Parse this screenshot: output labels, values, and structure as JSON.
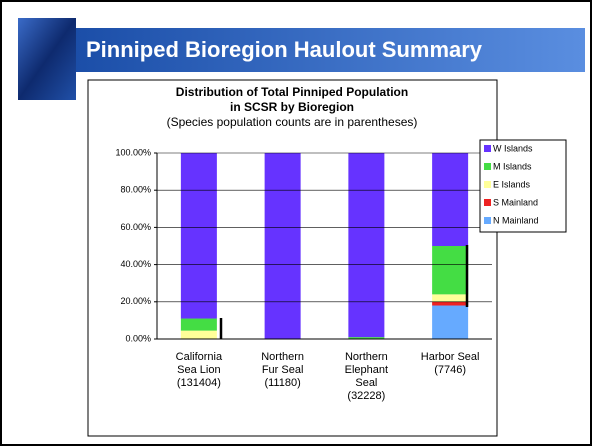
{
  "slide_title": "Pinniped Bioregion Haulout Summary",
  "chart_data": {
    "type": "stacked-bar",
    "title": [
      "Distribution of Total Pinniped Population",
      "in SCSR by Bioregion"
    ],
    "subtitle": "(Species population counts are in parentheses)",
    "categories": [
      [
        "California",
        "Sea Lion",
        "(131404)"
      ],
      [
        "Northern",
        "Fur Seal",
        "(11180)"
      ],
      [
        "Northern",
        "Elephant",
        "Seal",
        "(32228)"
      ],
      [
        "Harbor Seal",
        "(7746)"
      ]
    ],
    "series": [
      {
        "name": "N Mainland",
        "color": "#66aaff",
        "values": [
          0,
          0,
          0,
          18
        ]
      },
      {
        "name": "S Mainland",
        "color": "#ee2222",
        "values": [
          0,
          0,
          0,
          2
        ]
      },
      {
        "name": "E Islands",
        "color": "#ffff99",
        "values": [
          4.5,
          0,
          0,
          4
        ]
      },
      {
        "name": "M Islands",
        "color": "#44dd44",
        "values": [
          6.5,
          0,
          1,
          26
        ]
      },
      {
        "name": "W Islands",
        "color": "#6633ff",
        "values": [
          89,
          100,
          99,
          50
        ]
      }
    ],
    "ylim": [
      0,
      100
    ],
    "yticks": [
      {
        "value": 0,
        "label": "0.00%"
      },
      {
        "value": 20,
        "label": "20.00%"
      },
      {
        "value": 40,
        "label": "40.00%"
      },
      {
        "value": 60,
        "label": "60.00%"
      },
      {
        "value": 80,
        "label": "80.00%"
      },
      {
        "value": 100,
        "label": "100.00%"
      }
    ],
    "grid": true,
    "legend": "right"
  }
}
